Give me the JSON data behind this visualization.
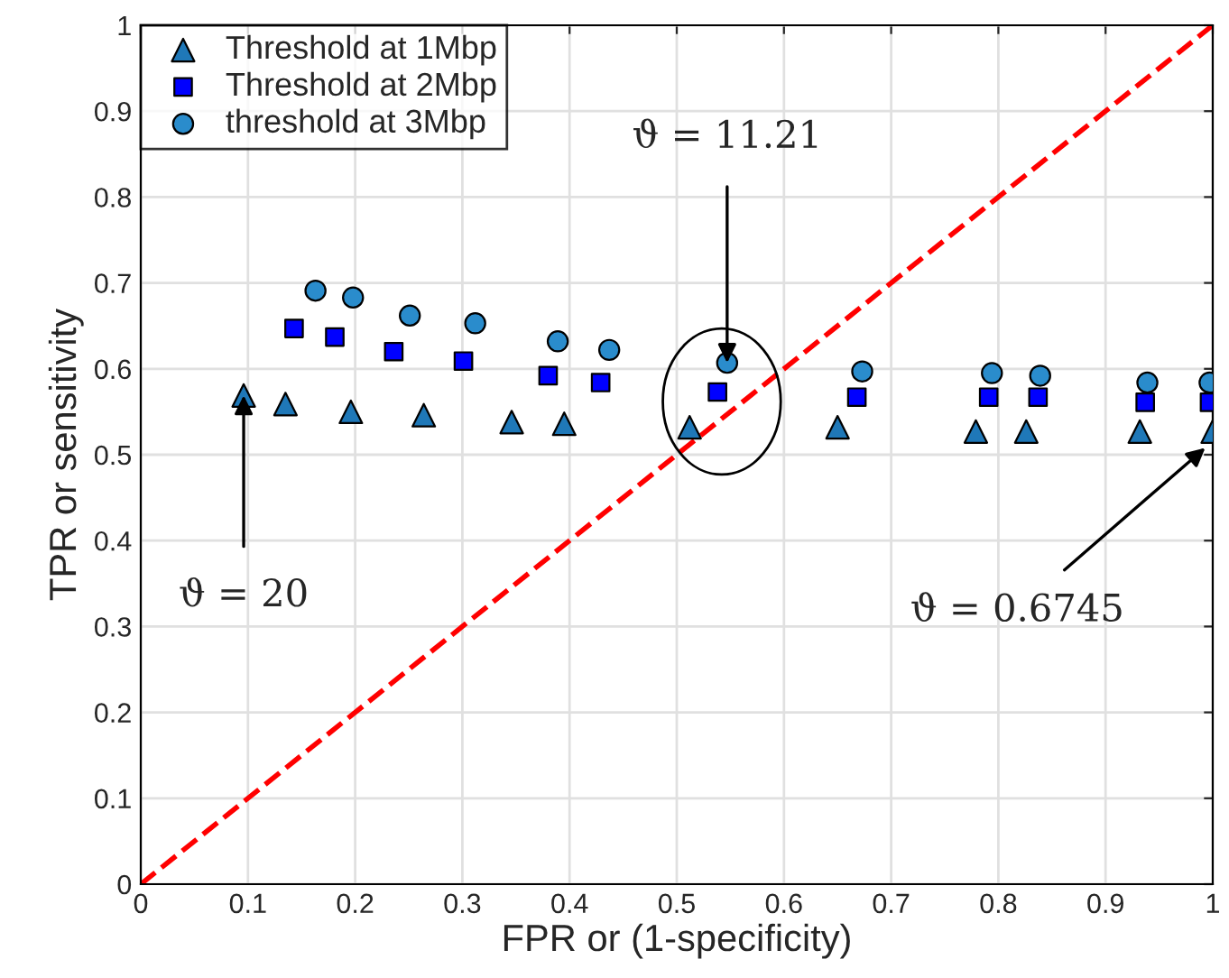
{
  "chart_data": {
    "type": "scatter",
    "xlabel": "FPR or (1-specificity)",
    "ylabel": "TPR or sensitivity",
    "xlim": [
      0,
      1
    ],
    "ylim": [
      0,
      1
    ],
    "xticks": [
      0,
      0.1,
      0.2,
      0.3,
      0.4,
      0.5,
      0.6,
      0.7,
      0.8,
      0.9,
      1
    ],
    "yticks": [
      0,
      0.1,
      0.2,
      0.3,
      0.4,
      0.5,
      0.6,
      0.7,
      0.8,
      0.9,
      1
    ],
    "grid": true,
    "legend": "top left",
    "series": [
      {
        "name": "Threshold at 1Mbp",
        "color": "#1f78b8",
        "marker": "triangle",
        "x": [
          0.096,
          0.135,
          0.196,
          0.264,
          0.346,
          0.395,
          0.512,
          0.65,
          0.779,
          0.826,
          0.932,
          1.0
        ],
        "values": [
          0.569,
          0.559,
          0.55,
          0.546,
          0.538,
          0.536,
          0.532,
          0.532,
          0.527,
          0.527,
          0.527,
          0.527
        ]
      },
      {
        "name": "Threshold at 2Mbp",
        "color": "#0000ff",
        "marker": "square",
        "x": [
          0.143,
          0.181,
          0.236,
          0.301,
          0.38,
          0.429,
          0.538,
          0.668,
          0.791,
          0.837,
          0.937,
          0.997
        ],
        "values": [
          0.647,
          0.637,
          0.62,
          0.609,
          0.592,
          0.584,
          0.573,
          0.567,
          0.567,
          0.567,
          0.561,
          0.561
        ]
      },
      {
        "name": "threshold at 3Mbp",
        "color": "#2a8ccc",
        "marker": "circle",
        "x": [
          0.163,
          0.198,
          0.251,
          0.312,
          0.389,
          0.437,
          0.547,
          0.673,
          0.794,
          0.839,
          0.939,
          0.997
        ],
        "values": [
          0.691,
          0.683,
          0.662,
          0.653,
          0.632,
          0.622,
          0.607,
          0.597,
          0.595,
          0.592,
          0.584,
          0.584
        ]
      },
      {
        "type": "line",
        "color": "#ff0000",
        "line_style": "dashed",
        "marker": "none",
        "x": [
          0,
          1
        ],
        "values": [
          0,
          1
        ]
      }
    ],
    "annotations": [
      {
        "text": "ϑ = 20",
        "x": 0.096,
        "y": 0.569
      },
      {
        "text": "ϑ = 11.21",
        "x": 0.547,
        "y": 0.607
      },
      {
        "text": "ϑ = 0.6745",
        "x": 0.993,
        "y": 0.508
      }
    ]
  }
}
